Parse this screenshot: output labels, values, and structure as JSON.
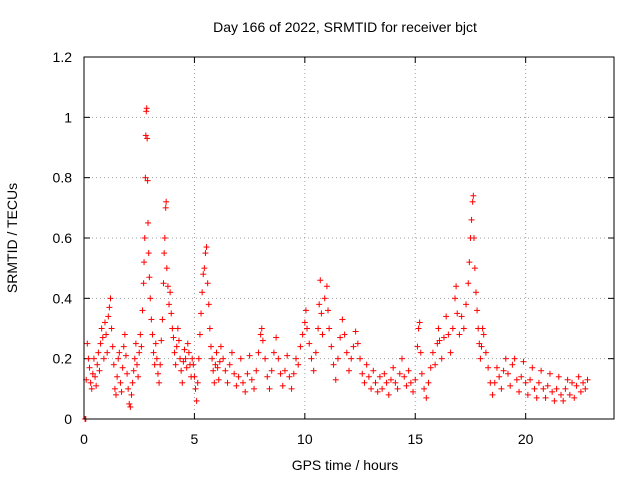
{
  "chart_data": {
    "type": "scatter",
    "title": "Day 166 of 2022, SRMTID for receiver bjct",
    "xlabel": "GPS time / hours",
    "ylabel": "SRMTID / TECUs",
    "xlim": [
      0,
      24
    ],
    "ylim": [
      0,
      1.2
    ],
    "xticks": [
      0,
      5,
      10,
      15,
      20
    ],
    "xtick_labels": [
      "0",
      "5",
      "10",
      "15",
      "20"
    ],
    "yticks": [
      0,
      0.2,
      0.4,
      0.6,
      0.8,
      1.0,
      1.2
    ],
    "ytick_labels": [
      "0",
      "0.2",
      "0.4",
      "0.6",
      "0.8",
      "1",
      "1.2"
    ],
    "grid": true,
    "marker": "+",
    "color": "#ff0000",
    "series": [
      {
        "name": "SRMTID",
        "points": [
          [
            0.05,
            0.0
          ],
          [
            0.08,
            0.0
          ],
          [
            0.1,
            0.13
          ],
          [
            0.15,
            0.25
          ],
          [
            0.2,
            0.2
          ],
          [
            0.25,
            0.17
          ],
          [
            0.3,
            0.12
          ],
          [
            0.35,
            0.1
          ],
          [
            0.4,
            0.15
          ],
          [
            0.45,
            0.2
          ],
          [
            0.5,
            0.14
          ],
          [
            0.55,
            0.11
          ],
          [
            0.6,
            0.18
          ],
          [
            0.65,
            0.22
          ],
          [
            0.7,
            0.16
          ],
          [
            0.75,
            0.25
          ],
          [
            0.8,
            0.3
          ],
          [
            0.85,
            0.27
          ],
          [
            0.9,
            0.2
          ],
          [
            0.95,
            0.32
          ],
          [
            1.0,
            0.28
          ],
          [
            1.05,
            0.22
          ],
          [
            1.1,
            0.34
          ],
          [
            1.15,
            0.37
          ],
          [
            1.2,
            0.4
          ],
          [
            1.25,
            0.3
          ],
          [
            1.3,
            0.24
          ],
          [
            1.35,
            0.18
          ],
          [
            1.4,
            0.1
          ],
          [
            1.45,
            0.08
          ],
          [
            1.5,
            0.14
          ],
          [
            1.55,
            0.2
          ],
          [
            1.6,
            0.22
          ],
          [
            1.65,
            0.12
          ],
          [
            1.7,
            0.09
          ],
          [
            1.75,
            0.17
          ],
          [
            1.8,
            0.24
          ],
          [
            1.85,
            0.28
          ],
          [
            1.9,
            0.21
          ],
          [
            1.95,
            0.15
          ],
          [
            2.0,
            0.1
          ],
          [
            2.05,
            0.05
          ],
          [
            2.1,
            0.04
          ],
          [
            2.15,
            0.08
          ],
          [
            2.2,
            0.12
          ],
          [
            2.25,
            0.16
          ],
          [
            2.3,
            0.2
          ],
          [
            2.35,
            0.25
          ],
          [
            2.4,
            0.18
          ],
          [
            2.45,
            0.14
          ],
          [
            2.5,
            0.22
          ],
          [
            2.55,
            0.28
          ],
          [
            2.6,
            0.24
          ],
          [
            2.65,
            0.36
          ],
          [
            2.7,
            0.45
          ],
          [
            2.72,
            0.52
          ],
          [
            2.75,
            0.6
          ],
          [
            2.78,
            0.8
          ],
          [
            2.8,
            0.94
          ],
          [
            2.82,
            1.02
          ],
          [
            2.84,
            1.03
          ],
          [
            2.86,
            0.93
          ],
          [
            2.88,
            0.79
          ],
          [
            2.9,
            0.65
          ],
          [
            2.93,
            0.55
          ],
          [
            2.96,
            0.47
          ],
          [
            3.0,
            0.4
          ],
          [
            3.05,
            0.33
          ],
          [
            3.1,
            0.28
          ],
          [
            3.15,
            0.22
          ],
          [
            3.2,
            0.18
          ],
          [
            3.25,
            0.25
          ],
          [
            3.3,
            0.2
          ],
          [
            3.35,
            0.15
          ],
          [
            3.4,
            0.12
          ],
          [
            3.45,
            0.18
          ],
          [
            3.5,
            0.26
          ],
          [
            3.55,
            0.33
          ],
          [
            3.6,
            0.45
          ],
          [
            3.63,
            0.55
          ],
          [
            3.66,
            0.6
          ],
          [
            3.7,
            0.7
          ],
          [
            3.72,
            0.72
          ],
          [
            3.75,
            0.5
          ],
          [
            3.8,
            0.44
          ],
          [
            3.85,
            0.38
          ],
          [
            3.9,
            0.42
          ],
          [
            3.95,
            0.35
          ],
          [
            4.0,
            0.3
          ],
          [
            4.05,
            0.27
          ],
          [
            4.1,
            0.22
          ],
          [
            4.15,
            0.18
          ],
          [
            4.2,
            0.24
          ],
          [
            4.25,
            0.3
          ],
          [
            4.3,
            0.26
          ],
          [
            4.35,
            0.2
          ],
          [
            4.4,
            0.16
          ],
          [
            4.45,
            0.12
          ],
          [
            4.5,
            0.19
          ],
          [
            4.55,
            0.23
          ],
          [
            4.6,
            0.2
          ],
          [
            4.65,
            0.17
          ],
          [
            4.7,
            0.25
          ],
          [
            4.75,
            0.22
          ],
          [
            4.8,
            0.18
          ],
          [
            4.85,
            0.14
          ],
          [
            4.9,
            0.2
          ],
          [
            4.95,
            0.18
          ],
          [
            5.0,
            0.14
          ],
          [
            5.05,
            0.1
          ],
          [
            5.1,
            0.06
          ],
          [
            5.15,
            0.12
          ],
          [
            5.2,
            0.2
          ],
          [
            5.25,
            0.28
          ],
          [
            5.3,
            0.35
          ],
          [
            5.35,
            0.42
          ],
          [
            5.4,
            0.48
          ],
          [
            5.45,
            0.5
          ],
          [
            5.5,
            0.55
          ],
          [
            5.55,
            0.57
          ],
          [
            5.6,
            0.45
          ],
          [
            5.65,
            0.38
          ],
          [
            5.7,
            0.3
          ],
          [
            5.75,
            0.24
          ],
          [
            5.8,
            0.2
          ],
          [
            5.85,
            0.16
          ],
          [
            5.9,
            0.12
          ],
          [
            5.95,
            0.18
          ],
          [
            6.0,
            0.22
          ],
          [
            6.05,
            0.17
          ],
          [
            6.1,
            0.13
          ],
          [
            6.15,
            0.19
          ],
          [
            6.2,
            0.24
          ],
          [
            6.3,
            0.2
          ],
          [
            6.4,
            0.16
          ],
          [
            6.5,
            0.12
          ],
          [
            6.6,
            0.18
          ],
          [
            6.7,
            0.22
          ],
          [
            6.8,
            0.15
          ],
          [
            6.9,
            0.11
          ],
          [
            7.0,
            0.14
          ],
          [
            7.1,
            0.2
          ],
          [
            7.2,
            0.12
          ],
          [
            7.3,
            0.09
          ],
          [
            7.4,
            0.15
          ],
          [
            7.5,
            0.21
          ],
          [
            7.6,
            0.13
          ],
          [
            7.7,
            0.1
          ],
          [
            7.8,
            0.16
          ],
          [
            7.9,
            0.22
          ],
          [
            8.0,
            0.28
          ],
          [
            8.05,
            0.3
          ],
          [
            8.1,
            0.26
          ],
          [
            8.2,
            0.2
          ],
          [
            8.3,
            0.14
          ],
          [
            8.4,
            0.1
          ],
          [
            8.5,
            0.16
          ],
          [
            8.6,
            0.22
          ],
          [
            8.7,
            0.27
          ],
          [
            8.8,
            0.2
          ],
          [
            8.9,
            0.15
          ],
          [
            9.0,
            0.11
          ],
          [
            9.1,
            0.16
          ],
          [
            9.2,
            0.21
          ],
          [
            9.3,
            0.14
          ],
          [
            9.4,
            0.1
          ],
          [
            9.5,
            0.15
          ],
          [
            9.6,
            0.2
          ],
          [
            9.7,
            0.18
          ],
          [
            9.8,
            0.24
          ],
          [
            9.9,
            0.28
          ],
          [
            10.0,
            0.32
          ],
          [
            10.05,
            0.36
          ],
          [
            10.1,
            0.3
          ],
          [
            10.2,
            0.25
          ],
          [
            10.3,
            0.2
          ],
          [
            10.4,
            0.16
          ],
          [
            10.5,
            0.22
          ],
          [
            10.6,
            0.3
          ],
          [
            10.65,
            0.38
          ],
          [
            10.7,
            0.46
          ],
          [
            10.75,
            0.35
          ],
          [
            10.8,
            0.28
          ],
          [
            10.9,
            0.4
          ],
          [
            11.0,
            0.44
          ],
          [
            11.05,
            0.36
          ],
          [
            11.1,
            0.3
          ],
          [
            11.2,
            0.24
          ],
          [
            11.3,
            0.18
          ],
          [
            11.4,
            0.13
          ],
          [
            11.5,
            0.2
          ],
          [
            11.6,
            0.27
          ],
          [
            11.7,
            0.33
          ],
          [
            11.8,
            0.28
          ],
          [
            11.9,
            0.22
          ],
          [
            12.0,
            0.16
          ],
          [
            12.1,
            0.2
          ],
          [
            12.2,
            0.24
          ],
          [
            12.3,
            0.29
          ],
          [
            12.4,
            0.25
          ],
          [
            12.5,
            0.2
          ],
          [
            12.6,
            0.15
          ],
          [
            12.7,
            0.12
          ],
          [
            12.8,
            0.18
          ],
          [
            12.9,
            0.14
          ],
          [
            13.0,
            0.1
          ],
          [
            13.1,
            0.16
          ],
          [
            13.2,
            0.12
          ],
          [
            13.3,
            0.09
          ],
          [
            13.4,
            0.14
          ],
          [
            13.5,
            0.1
          ],
          [
            13.6,
            0.15
          ],
          [
            13.7,
            0.12
          ],
          [
            13.8,
            0.08
          ],
          [
            13.9,
            0.13
          ],
          [
            14.0,
            0.17
          ],
          [
            14.1,
            0.12
          ],
          [
            14.2,
            0.1
          ],
          [
            14.3,
            0.15
          ],
          [
            14.4,
            0.2
          ],
          [
            14.5,
            0.14
          ],
          [
            14.6,
            0.11
          ],
          [
            14.7,
            0.16
          ],
          [
            14.8,
            0.12
          ],
          [
            14.9,
            0.09
          ],
          [
            15.0,
            0.13
          ],
          [
            15.1,
            0.24
          ],
          [
            15.15,
            0.3
          ],
          [
            15.2,
            0.32
          ],
          [
            15.25,
            0.22
          ],
          [
            15.3,
            0.15
          ],
          [
            15.4,
            0.1
          ],
          [
            15.5,
            0.07
          ],
          [
            15.6,
            0.12
          ],
          [
            15.7,
            0.17
          ],
          [
            15.8,
            0.22
          ],
          [
            15.9,
            0.18
          ],
          [
            16.0,
            0.25
          ],
          [
            16.05,
            0.3
          ],
          [
            16.1,
            0.26
          ],
          [
            16.2,
            0.2
          ],
          [
            16.3,
            0.27
          ],
          [
            16.4,
            0.34
          ],
          [
            16.5,
            0.28
          ],
          [
            16.6,
            0.22
          ],
          [
            16.7,
            0.3
          ],
          [
            16.8,
            0.4
          ],
          [
            16.85,
            0.44
          ],
          [
            16.9,
            0.35
          ],
          [
            17.0,
            0.28
          ],
          [
            17.1,
            0.34
          ],
          [
            17.2,
            0.3
          ],
          [
            17.3,
            0.38
          ],
          [
            17.4,
            0.45
          ],
          [
            17.45,
            0.52
          ],
          [
            17.5,
            0.6
          ],
          [
            17.55,
            0.66
          ],
          [
            17.6,
            0.72
          ],
          [
            17.63,
            0.74
          ],
          [
            17.66,
            0.6
          ],
          [
            17.7,
            0.5
          ],
          [
            17.75,
            0.42
          ],
          [
            17.8,
            0.36
          ],
          [
            17.85,
            0.3
          ],
          [
            17.9,
            0.25
          ],
          [
            17.95,
            0.2
          ],
          [
            18.0,
            0.24
          ],
          [
            18.05,
            0.3
          ],
          [
            18.1,
            0.28
          ],
          [
            18.2,
            0.22
          ],
          [
            18.3,
            0.17
          ],
          [
            18.4,
            0.12
          ],
          [
            18.5,
            0.08
          ],
          [
            18.6,
            0.12
          ],
          [
            18.7,
            0.17
          ],
          [
            18.8,
            0.14
          ],
          [
            18.9,
            0.1
          ],
          [
            19.0,
            0.16
          ],
          [
            19.1,
            0.2
          ],
          [
            19.2,
            0.15
          ],
          [
            19.3,
            0.11
          ],
          [
            19.4,
            0.18
          ],
          [
            19.5,
            0.2
          ],
          [
            19.6,
            0.13
          ],
          [
            19.7,
            0.09
          ],
          [
            19.8,
            0.14
          ],
          [
            19.9,
            0.19
          ],
          [
            20.0,
            0.12
          ],
          [
            20.1,
            0.08
          ],
          [
            20.2,
            0.13
          ],
          [
            20.3,
            0.17
          ],
          [
            20.4,
            0.1
          ],
          [
            20.5,
            0.07
          ],
          [
            20.6,
            0.12
          ],
          [
            20.7,
            0.16
          ],
          [
            20.8,
            0.1
          ],
          [
            20.9,
            0.07
          ],
          [
            21.0,
            0.11
          ],
          [
            21.1,
            0.15
          ],
          [
            21.2,
            0.09
          ],
          [
            21.3,
            0.06
          ],
          [
            21.4,
            0.1
          ],
          [
            21.5,
            0.14
          ],
          [
            21.6,
            0.08
          ],
          [
            21.7,
            0.06
          ],
          [
            21.8,
            0.1
          ],
          [
            21.9,
            0.13
          ],
          [
            22.0,
            0.08
          ],
          [
            22.1,
            0.12
          ],
          [
            22.2,
            0.07
          ],
          [
            22.3,
            0.11
          ],
          [
            22.4,
            0.14
          ],
          [
            22.5,
            0.09
          ],
          [
            22.6,
            0.12
          ],
          [
            22.7,
            0.1
          ],
          [
            22.8,
            0.13
          ]
        ]
      }
    ]
  }
}
